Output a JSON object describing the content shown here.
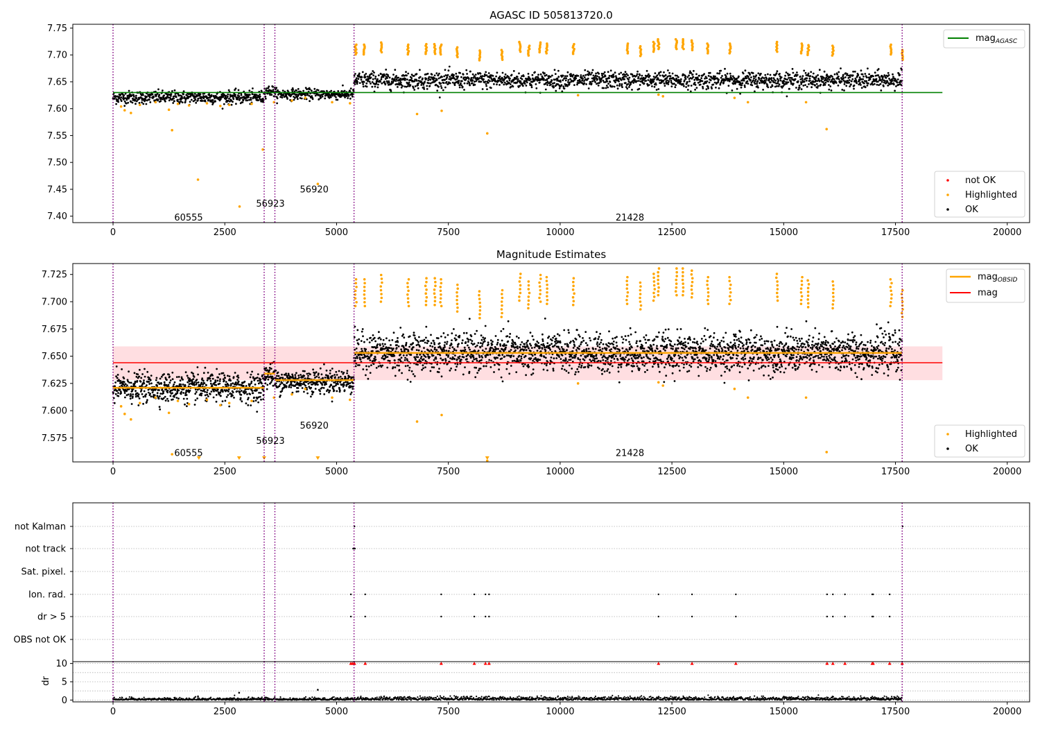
{
  "colors": {
    "ok": "#000000",
    "highlighted": "#ffa500",
    "not_ok": "#ff0000",
    "mag_agasc": "#008000",
    "mag": "#ff0000",
    "mag_obsid": "#ffa500",
    "band": "#ffd6d9",
    "vline": "#800080",
    "grid": "#b0b0b0"
  },
  "chart_data": [
    {
      "id": "mag_agasc_panel",
      "type": "scatter",
      "title": "AGASC ID 505813720.0",
      "xlim": [
        -900,
        20500
      ],
      "ylim": [
        7.388,
        7.757
      ],
      "xticks": [
        0,
        2500,
        5000,
        7500,
        10000,
        12500,
        15000,
        17500,
        20000
      ],
      "xtick_labels": [
        "0",
        "2500",
        "5000",
        "7500",
        "10000",
        "12500",
        "15000",
        "17500",
        "20000"
      ],
      "yticks": [
        7.4,
        7.45,
        7.5,
        7.55,
        7.6,
        7.65,
        7.7,
        7.75
      ],
      "ytick_labels": [
        "7.40",
        "7.45",
        "7.50",
        "7.55",
        "7.60",
        "7.65",
        "7.70",
        "7.75"
      ],
      "vlines": [
        0,
        3380,
        3620,
        5390,
        17650
      ],
      "hline": {
        "y": 7.63,
        "x0": 0,
        "x1": 18550,
        "label": "mag",
        "sub": "AGASC"
      },
      "segments": [
        {
          "x0": 0,
          "x1": 3380,
          "level": 7.621,
          "spread": 0.006
        },
        {
          "x0": 3380,
          "x1": 3620,
          "level": 7.633,
          "spread": 0.005
        },
        {
          "x0": 3620,
          "x1": 5390,
          "level": 7.627,
          "spread": 0.005
        },
        {
          "x0": 5390,
          "x1": 17650,
          "level": 7.653,
          "spread": 0.008
        }
      ],
      "highlighted_points": [
        [
          180,
          7.604
        ],
        [
          260,
          7.597
        ],
        [
          400,
          7.592
        ],
        [
          600,
          7.607
        ],
        [
          950,
          7.612
        ],
        [
          1250,
          7.598
        ],
        [
          1320,
          7.56
        ],
        [
          1450,
          7.609
        ],
        [
          1700,
          7.606
        ],
        [
          1900,
          7.468
        ],
        [
          2100,
          7.61
        ],
        [
          2400,
          7.605
        ],
        [
          2600,
          7.607
        ],
        [
          2830,
          7.418
        ],
        [
          3100,
          7.609
        ],
        [
          3350,
          7.524
        ],
        [
          3600,
          7.612
        ],
        [
          4000,
          7.615
        ],
        [
          4300,
          7.62
        ],
        [
          4580,
          7.46
        ],
        [
          4900,
          7.612
        ],
        [
          5300,
          7.61
        ],
        [
          6800,
          7.59
        ],
        [
          7350,
          7.596
        ],
        [
          8370,
          7.554
        ],
        [
          10400,
          7.625
        ],
        [
          12200,
          7.626
        ],
        [
          12300,
          7.623
        ],
        [
          13900,
          7.62
        ],
        [
          14200,
          7.612
        ],
        [
          15500,
          7.612
        ],
        [
          15960,
          7.562
        ]
      ],
      "highlighted_clusters": [
        [
          5430,
          7.71
        ],
        [
          5620,
          7.71
        ],
        [
          6000,
          7.714
        ],
        [
          6600,
          7.71
        ],
        [
          7000,
          7.711
        ],
        [
          7200,
          7.711
        ],
        [
          7330,
          7.71
        ],
        [
          7700,
          7.705
        ],
        [
          8200,
          7.699
        ],
        [
          8700,
          7.7
        ],
        [
          9100,
          7.715
        ],
        [
          9300,
          7.708
        ],
        [
          9550,
          7.714
        ],
        [
          9700,
          7.712
        ],
        [
          10300,
          7.711
        ],
        [
          11500,
          7.712
        ],
        [
          11800,
          7.707
        ],
        [
          12100,
          7.715
        ],
        [
          12200,
          7.72
        ],
        [
          12600,
          7.72
        ],
        [
          12750,
          7.72
        ],
        [
          12950,
          7.718
        ],
        [
          13300,
          7.712
        ],
        [
          13800,
          7.712
        ],
        [
          14850,
          7.715
        ],
        [
          15400,
          7.712
        ],
        [
          15550,
          7.709
        ],
        [
          16100,
          7.708
        ],
        [
          17400,
          7.71
        ],
        [
          17650,
          7.7
        ]
      ],
      "obsid_labels": [
        {
          "text": "60555",
          "x": 1690,
          "y": 7.397
        },
        {
          "text": "56923",
          "x": 3520,
          "y": 7.423
        },
        {
          "text": "56920",
          "x": 4500,
          "y": 7.449
        },
        {
          "text": "21428",
          "x": 11560,
          "y": 7.397
        }
      ],
      "legend_top": {
        "position": "top-right",
        "entries": [
          {
            "label": "mag",
            "sub": "AGASC"
          }
        ]
      },
      "legend_bottom": {
        "position": "lower-right",
        "entries": [
          "not OK",
          "Highlighted",
          "OK"
        ]
      }
    },
    {
      "id": "mag_estimates_panel",
      "type": "scatter",
      "title": "Magnitude Estimates",
      "xlim": [
        -900,
        20500
      ],
      "ylim": [
        7.553,
        7.735
      ],
      "xticks": [
        0,
        2500,
        5000,
        7500,
        10000,
        12500,
        15000,
        17500,
        20000
      ],
      "xtick_labels": [
        "0",
        "2500",
        "5000",
        "7500",
        "10000",
        "12500",
        "15000",
        "17500",
        "20000"
      ],
      "yticks": [
        7.575,
        7.6,
        7.625,
        7.65,
        7.675,
        7.7,
        7.725
      ],
      "ytick_labels": [
        "7.575",
        "7.600",
        "7.625",
        "7.650",
        "7.675",
        "7.700",
        "7.725"
      ],
      "vlines": [
        0,
        3380,
        3620,
        5390,
        17650
      ],
      "mag": {
        "y": 7.644,
        "band": [
          7.628,
          7.659
        ],
        "x0": 0,
        "x1": 18550
      },
      "mag_obsid": [
        {
          "x0": 0,
          "x1": 3380,
          "y": 7.621
        },
        {
          "x0": 3380,
          "x1": 3620,
          "y": 7.634
        },
        {
          "x0": 3620,
          "x1": 5390,
          "y": 7.628
        },
        {
          "x0": 5390,
          "x1": 17650,
          "y": 7.653
        }
      ],
      "off_scale_markers_x": [
        1920,
        2820,
        3380,
        4580,
        8370
      ],
      "obsid_labels": [
        {
          "text": "60555",
          "x": 1690,
          "y": 7.561
        },
        {
          "text": "56923",
          "x": 3520,
          "y": 7.572
        },
        {
          "text": "56920",
          "x": 4500,
          "y": 7.586
        },
        {
          "text": "21428",
          "x": 11560,
          "y": 7.561
        }
      ],
      "legend_top": {
        "position": "top-right",
        "entries": [
          {
            "label": "mag",
            "sub": "OBSID"
          },
          {
            "label": "mag",
            "sub": ""
          }
        ]
      },
      "legend_bottom": {
        "position": "lower-right",
        "entries": [
          "Highlighted",
          "OK"
        ]
      }
    },
    {
      "id": "flags_panel",
      "type": "scatter",
      "xlim": [
        -900,
        20500
      ],
      "categories": [
        "not Kalman",
        "not track",
        "Sat. pixel.",
        "Ion. rad.",
        "dr > 5",
        "OBS not OK"
      ],
      "flag_points": {
        "not Kalman": [
          5400,
          17660
        ],
        "not track": [
          5370,
          5390,
          5410
        ],
        "Sat. pixel.": [],
        "Ion. rad.": [
          5320,
          5640,
          7340,
          8080,
          8330,
          8410,
          12200,
          12950,
          13930,
          15970,
          16100,
          16370,
          16980,
          17000,
          17370
        ],
        "dr > 5": [
          5320,
          5640,
          7340,
          8080,
          8330,
          8410,
          12200,
          12950,
          13930,
          15970,
          16100,
          16370,
          16980,
          17000,
          17370
        ],
        "OBS not OK": []
      },
      "vlines": [
        0,
        3380,
        3620,
        5390,
        17650
      ]
    },
    {
      "id": "dr_panel",
      "type": "scatter",
      "ylabel": "dr",
      "xlim": [
        -900,
        20500
      ],
      "ylim": [
        -0.5,
        10.5
      ],
      "xticks": [
        0,
        2500,
        5000,
        7500,
        10000,
        12500,
        15000,
        17500,
        20000
      ],
      "xtick_labels": [
        "0",
        "2500",
        "5000",
        "7500",
        "10000",
        "12500",
        "15000",
        "17500",
        "20000"
      ],
      "yticks": [
        0,
        5,
        10
      ],
      "ytick_labels": [
        "0",
        "5",
        "10"
      ],
      "minor_grid": [
        2.5,
        7.5
      ],
      "vlines": [
        0,
        3380,
        3620,
        5390,
        17650
      ],
      "clipped_x": [
        5320,
        5360,
        5400,
        5640,
        7340,
        8080,
        8330,
        8410,
        12200,
        12950,
        13930,
        15970,
        16100,
        16370,
        16980,
        17000,
        17370,
        17650
      ],
      "outliers": [
        [
          1900,
          1.0
        ],
        [
          2820,
          2.0
        ],
        [
          4580,
          2.8
        ],
        [
          3400,
          0.7
        ]
      ]
    }
  ]
}
